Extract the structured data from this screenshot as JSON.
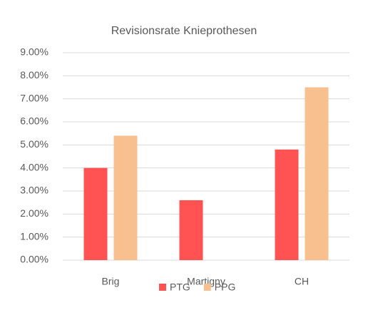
{
  "chart_data": {
    "type": "bar",
    "title": "Revisionsrate Knieprothesen",
    "categories": [
      "Brig",
      "Martigny",
      "CH"
    ],
    "series": [
      {
        "name": "PTG",
        "color": "#ff5353",
        "values": [
          4.0,
          2.6,
          4.8
        ]
      },
      {
        "name": "PPG",
        "color": "#f9c08f",
        "values": [
          5.4,
          null,
          7.5
        ]
      }
    ],
    "ylim": [
      0,
      9
    ],
    "yticks": [
      {
        "value": 0,
        "label": "0.00%"
      },
      {
        "value": 1,
        "label": "1.00%"
      },
      {
        "value": 2,
        "label": "2.00%"
      },
      {
        "value": 3,
        "label": "3.00%"
      },
      {
        "value": 4,
        "label": "4.00%"
      },
      {
        "value": 5,
        "label": "5.00%"
      },
      {
        "value": 6,
        "label": "6.00%"
      },
      {
        "value": 7,
        "label": "7.00%"
      },
      {
        "value": 8,
        "label": "8.00%"
      },
      {
        "value": 9,
        "label": "9.00%"
      }
    ],
    "grid": true,
    "legend": "bottom"
  }
}
